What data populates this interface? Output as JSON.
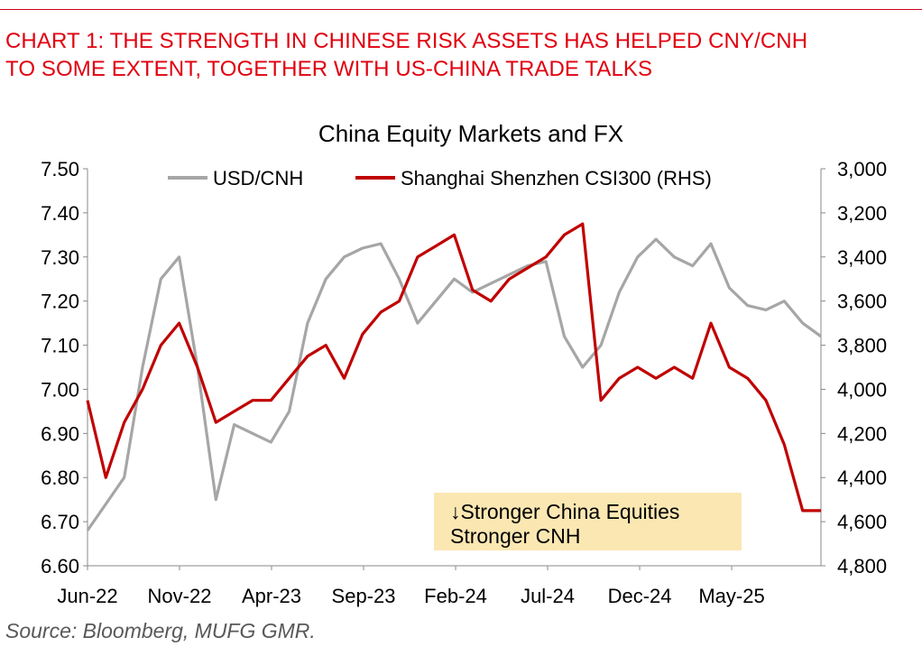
{
  "header": {
    "headline_line1": "CHART 1: THE STRENGTH IN CHINESE RISK ASSETS HAS HELPED CNY/CNH",
    "headline_line2": "TO SOME EXTENT, TOGETHER WITH US-CHINA TRADE TALKS"
  },
  "footer": {
    "source": "Source: Bloomberg, MUFG GMR."
  },
  "annotation": {
    "line1": "↓Stronger China Equities",
    "line2": "Stronger CNH"
  },
  "chart_data": {
    "type": "line",
    "title": "China Equity Markets and FX",
    "colors": {
      "usdcnh": "#a6a6a6",
      "csi300": "#c00000",
      "text": "#000000",
      "annotation_bg": "#fbe7b2"
    },
    "legend_position": "top",
    "grid": false,
    "x_tick_labels": [
      "Jun-22",
      "Nov-22",
      "Apr-23",
      "Sep-23",
      "Feb-24",
      "Jul-24",
      "Dec-24",
      "May-25"
    ],
    "x_range": [
      "2022-06",
      "2025-10"
    ],
    "y_left": {
      "ylim": [
        6.6,
        7.5
      ],
      "ticks": [
        "6.60",
        "6.70",
        "6.80",
        "6.90",
        "7.00",
        "7.10",
        "7.20",
        "7.30",
        "7.40",
        "7.50"
      ]
    },
    "y_right": {
      "ylim": [
        4800,
        3000
      ],
      "inverted": true,
      "ticks": [
        "3,000",
        "3,200",
        "3,400",
        "3,600",
        "3,800",
        "4,000",
        "4,200",
        "4,400",
        "4,600",
        "4,800"
      ]
    },
    "series": [
      {
        "name": "USD/CNH",
        "axis": "left",
        "points": [
          [
            "2022-06",
            6.68
          ],
          [
            "2022-07",
            6.74
          ],
          [
            "2022-08",
            6.8
          ],
          [
            "2022-09",
            7.05
          ],
          [
            "2022-10",
            7.25
          ],
          [
            "2022-11",
            7.3
          ],
          [
            "2022-12",
            7.05
          ],
          [
            "2023-01",
            6.75
          ],
          [
            "2023-02",
            6.92
          ],
          [
            "2023-03",
            6.9
          ],
          [
            "2023-04",
            6.88
          ],
          [
            "2023-05",
            6.95
          ],
          [
            "2023-06",
            7.15
          ],
          [
            "2023-07",
            7.25
          ],
          [
            "2023-08",
            7.3
          ],
          [
            "2023-09",
            7.32
          ],
          [
            "2023-10",
            7.33
          ],
          [
            "2023-11",
            7.25
          ],
          [
            "2023-12",
            7.15
          ],
          [
            "2024-01",
            7.2
          ],
          [
            "2024-02",
            7.25
          ],
          [
            "2024-03",
            7.22
          ],
          [
            "2024-04",
            7.24
          ],
          [
            "2024-05",
            7.26
          ],
          [
            "2024-06",
            7.28
          ],
          [
            "2024-07",
            7.29
          ],
          [
            "2024-08",
            7.12
          ],
          [
            "2024-09",
            7.05
          ],
          [
            "2024-10",
            7.1
          ],
          [
            "2024-11",
            7.22
          ],
          [
            "2024-12",
            7.3
          ],
          [
            "2025-01",
            7.34
          ],
          [
            "2025-02",
            7.3
          ],
          [
            "2025-03",
            7.28
          ],
          [
            "2025-04",
            7.33
          ],
          [
            "2025-05",
            7.23
          ],
          [
            "2025-06",
            7.19
          ],
          [
            "2025-07",
            7.18
          ],
          [
            "2025-08",
            7.2
          ],
          [
            "2025-09",
            7.15
          ],
          [
            "2025-10",
            7.12
          ]
        ]
      },
      {
        "name": "Shanghai Shenzhen CSI300 (RHS)",
        "axis": "right",
        "points": [
          [
            "2022-06",
            4050
          ],
          [
            "2022-07",
            4400
          ],
          [
            "2022-08",
            4150
          ],
          [
            "2022-09",
            4000
          ],
          [
            "2022-10",
            3800
          ],
          [
            "2022-11",
            3700
          ],
          [
            "2022-12",
            3900
          ],
          [
            "2023-01",
            4150
          ],
          [
            "2023-02",
            4100
          ],
          [
            "2023-03",
            4050
          ],
          [
            "2023-04",
            4050
          ],
          [
            "2023-05",
            3950
          ],
          [
            "2023-06",
            3850
          ],
          [
            "2023-07",
            3800
          ],
          [
            "2023-08",
            3950
          ],
          [
            "2023-09",
            3750
          ],
          [
            "2023-10",
            3650
          ],
          [
            "2023-11",
            3600
          ],
          [
            "2023-12",
            3400
          ],
          [
            "2024-01",
            3350
          ],
          [
            "2024-02",
            3300
          ],
          [
            "2024-03",
            3550
          ],
          [
            "2024-04",
            3600
          ],
          [
            "2024-05",
            3500
          ],
          [
            "2024-06",
            3450
          ],
          [
            "2024-07",
            3400
          ],
          [
            "2024-08",
            3300
          ],
          [
            "2024-09",
            3250
          ],
          [
            "2024-10",
            4050
          ],
          [
            "2024-11",
            3950
          ],
          [
            "2024-12",
            3900
          ],
          [
            "2025-01",
            3950
          ],
          [
            "2025-02",
            3900
          ],
          [
            "2025-03",
            3950
          ],
          [
            "2025-04",
            3700
          ],
          [
            "2025-05",
            3900
          ],
          [
            "2025-06",
            3950
          ],
          [
            "2025-07",
            4050
          ],
          [
            "2025-08",
            4250
          ],
          [
            "2025-09",
            4550
          ],
          [
            "2025-10",
            4550
          ]
        ]
      }
    ]
  }
}
